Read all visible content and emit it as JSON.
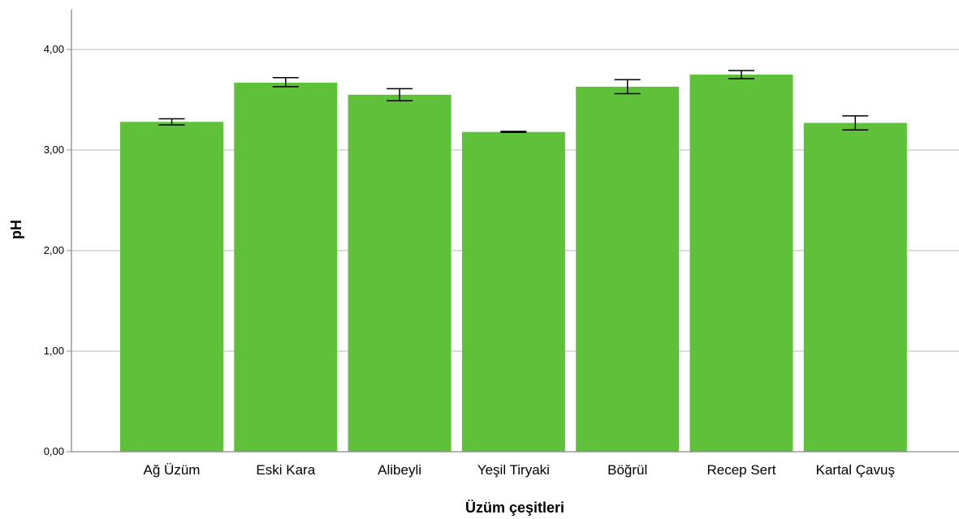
{
  "chart_data": {
    "type": "bar",
    "title": "",
    "xlabel": "Üzüm çeşitleri",
    "ylabel": "pH",
    "categories": [
      "Ağ Üzüm",
      "Eski Kara",
      "Alibeyli",
      "Yeşil Tiryaki",
      "Böğrül",
      "Recep Sert",
      "Kartal Çavuş"
    ],
    "values": [
      3.28,
      3.67,
      3.55,
      3.18,
      3.63,
      3.75,
      3.27
    ],
    "error_bars": [
      {
        "low": 3.25,
        "high": 3.31
      },
      {
        "low": 3.63,
        "high": 3.72
      },
      {
        "low": 3.49,
        "high": 3.61
      },
      {
        "low": 3.175,
        "high": 3.185
      },
      {
        "low": 3.56,
        "high": 3.7
      },
      {
        "low": 3.71,
        "high": 3.79
      },
      {
        "low": 3.2,
        "high": 3.34
      }
    ],
    "yticks": [
      "0,00",
      "1,00",
      "2,00",
      "3,00",
      "4,00"
    ],
    "ytick_values": [
      0,
      1,
      2,
      3,
      4
    ],
    "ylim": [
      0,
      4.4
    ],
    "grid": true,
    "bar_color": "#5fc03a",
    "gridline_color": "#c8c8c8",
    "axis_color": "#888888",
    "error_bar_color": "#000000"
  }
}
